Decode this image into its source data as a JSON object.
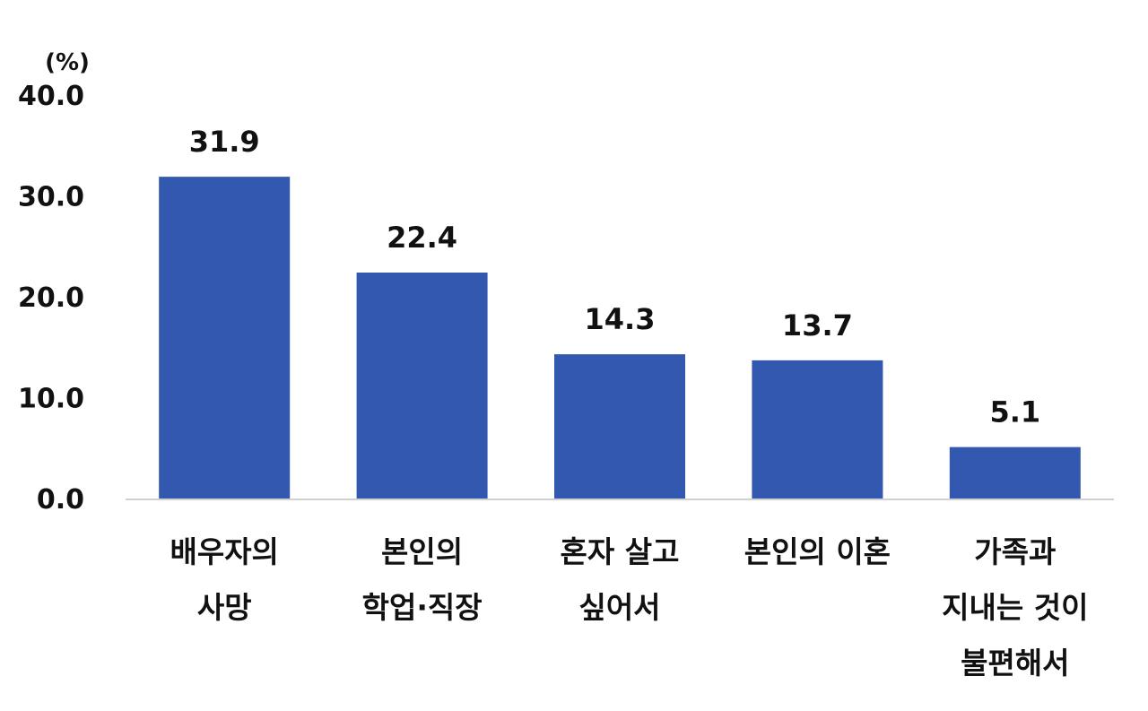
{
  "chart_data": {
    "type": "bar",
    "unit": "(%)",
    "y_ticks": [
      "0.0",
      "10.0",
      "20.0",
      "30.0",
      "40.0"
    ],
    "ylim": [
      0,
      40
    ],
    "categories": [
      [
        "배우자의",
        "사망"
      ],
      [
        "본인의",
        "학업·직장"
      ],
      [
        "혼자 살고",
        "싶어서"
      ],
      [
        "본인의 이혼"
      ],
      [
        "가족과",
        "지내는 것이",
        "불편해서"
      ]
    ],
    "values": [
      31.9,
      22.4,
      14.3,
      13.7,
      5.1
    ],
    "value_labels": [
      "31.9",
      "22.4",
      "14.3",
      "13.7",
      "5.1"
    ],
    "bar_color": "#3358b0",
    "axis_color": "#d0d0d0",
    "grid": false,
    "legend": "none"
  }
}
